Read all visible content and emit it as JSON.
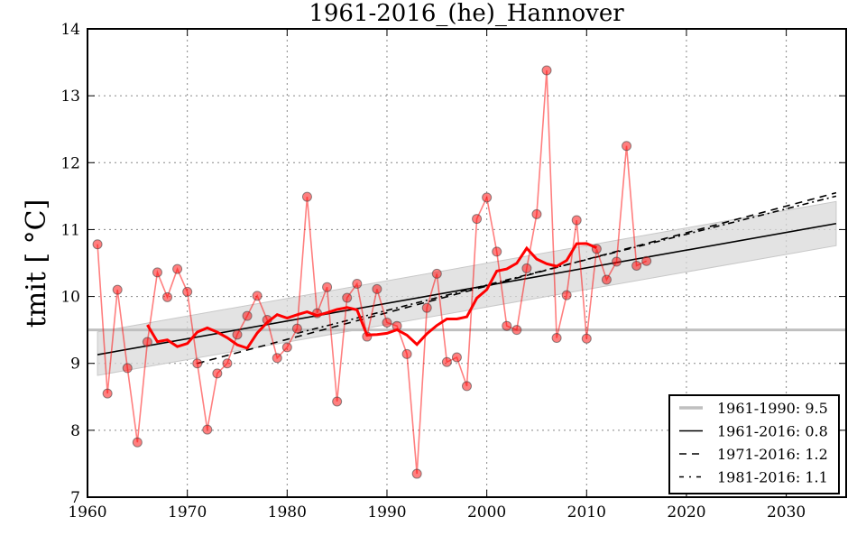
{
  "chart_data": {
    "type": "line",
    "title": "1961-2016_(he)_Hannover",
    "xlabel": "",
    "ylabel": "tmit  [ °C]",
    "xlim": [
      1960,
      2036
    ],
    "ylim": [
      7,
      14
    ],
    "xticks": [
      1960,
      1970,
      1980,
      1990,
      2000,
      2010,
      2020,
      2030
    ],
    "yticks": [
      7,
      8,
      9,
      10,
      11,
      12,
      13,
      14
    ],
    "grid": true,
    "legend_position": "bottom-right",
    "colors": {
      "points": "#ff0000",
      "running_mean": "#ff0000",
      "reference": "#bfbfbf",
      "trend": "#000000",
      "band": "#d9d9d9"
    },
    "series": {
      "annual": {
        "name": "tmit",
        "x": [
          1961,
          1962,
          1963,
          1964,
          1965,
          1966,
          1967,
          1968,
          1969,
          1970,
          1971,
          1972,
          1973,
          1974,
          1975,
          1976,
          1977,
          1978,
          1979,
          1980,
          1981,
          1982,
          1983,
          1984,
          1985,
          1986,
          1987,
          1988,
          1989,
          1990,
          1991,
          1992,
          1993,
          1994,
          1995,
          1996,
          1997,
          1998,
          1999,
          2000,
          2001,
          2002,
          2003,
          2004,
          2005,
          2006,
          2007,
          2008,
          2009,
          2010,
          2011,
          2012,
          2013,
          2014,
          2015,
          2016
        ],
        "y": [
          10.78,
          8.55,
          10.1,
          8.93,
          7.82,
          9.32,
          10.36,
          9.99,
          10.41,
          10.07,
          9.0,
          8.01,
          8.85,
          9.0,
          9.43,
          9.71,
          10.01,
          9.65,
          9.08,
          9.24,
          9.52,
          11.49,
          9.75,
          10.14,
          8.43,
          9.98,
          10.19,
          9.4,
          10.11,
          9.61,
          9.56,
          9.14,
          7.35,
          9.83,
          10.34,
          9.02,
          9.09,
          8.66,
          11.16,
          11.48,
          10.67,
          9.56,
          9.5,
          10.42,
          11.23,
          13.38,
          9.38,
          10.02,
          11.14,
          9.37,
          10.71,
          10.25,
          10.52,
          12.25,
          10.46,
          10.53
        ]
      },
      "running_mean_window_years": 11,
      "reference": {
        "label": "1961-1990: 9.5",
        "value": 9.5
      },
      "trends": [
        {
          "label": "1961-2016: 0.8",
          "x": [
            1961,
            2035
          ],
          "y": [
            9.13,
            11.09
          ],
          "style": "solid"
        },
        {
          "label": "1971-2016: 1.2",
          "x": [
            1971,
            2035
          ],
          "y": [
            9.0,
            11.55
          ],
          "style": "dashed"
        },
        {
          "label": "1981-2016: 1.1",
          "x": [
            1981,
            2035
          ],
          "y": [
            9.45,
            11.5
          ],
          "style": "dashdot"
        }
      ],
      "confidence_band": [
        [
          1961,
          8.82,
          9.47
        ],
        [
          2035,
          10.76,
          11.42
        ]
      ]
    }
  }
}
